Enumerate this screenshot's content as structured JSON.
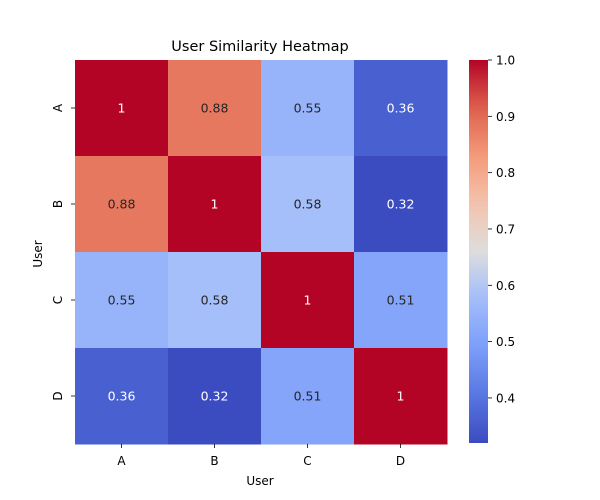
{
  "chart_data": {
    "type": "heatmap",
    "title": "User Similarity Heatmap",
    "xlabel": "User",
    "ylabel": "User",
    "x_categories": [
      "A",
      "B",
      "C",
      "D"
    ],
    "y_categories": [
      "A",
      "B",
      "C",
      "D"
    ],
    "values": [
      [
        1,
        0.88,
        0.55,
        0.36
      ],
      [
        0.88,
        1,
        0.58,
        0.32
      ],
      [
        0.55,
        0.58,
        1,
        0.51
      ],
      [
        0.36,
        0.32,
        0.51,
        1
      ]
    ],
    "value_labels": [
      [
        "1",
        "0.88",
        "0.55",
        "0.36"
      ],
      [
        "0.88",
        "1",
        "0.58",
        "0.32"
      ],
      [
        "0.55",
        "0.58",
        "1",
        "0.51"
      ],
      [
        "0.36",
        "0.32",
        "0.51",
        "1"
      ]
    ],
    "colormap": "coolwarm",
    "color_range": [
      0.32,
      1.0
    ],
    "colorbar_ticks": [
      1.0,
      0.9,
      0.8,
      0.7,
      0.6,
      0.5,
      0.4
    ],
    "colorbar_tick_labels": [
      "1.0",
      "0.9",
      "0.8",
      "0.7",
      "0.6",
      "0.5",
      "0.4"
    ],
    "colorbar_placement": "right",
    "grid": false
  }
}
